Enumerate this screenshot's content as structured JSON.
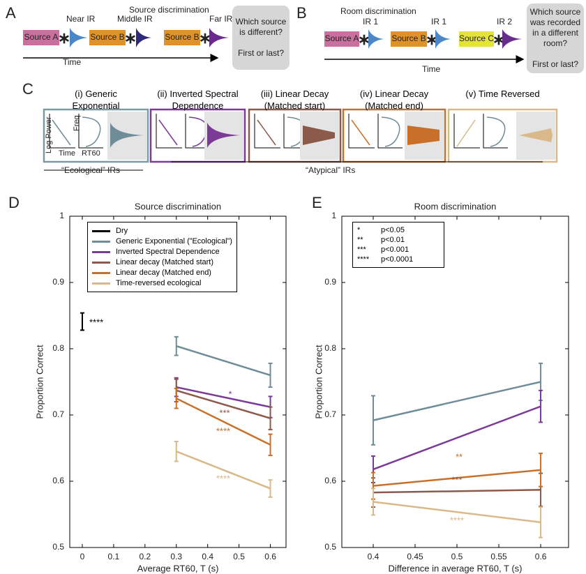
{
  "panel_a": {
    "label": "A",
    "title": "Source discrimination",
    "sources": [
      "Source A",
      "Source B",
      "Source B"
    ],
    "irs": [
      "Near IR",
      "Middle IR",
      "Far  IR"
    ],
    "time_label": "Time",
    "question": "Which source is different?",
    "question2": "First or last?"
  },
  "panel_b": {
    "label": "B",
    "title": "Room discrimination",
    "sources": [
      "Source A",
      "Source B",
      "Source C"
    ],
    "irs": [
      "IR 1",
      "IR 1",
      "IR 2"
    ],
    "time_label": "Time",
    "question": "Which source was recorded in a different room?",
    "question2": "First or last?"
  },
  "panel_c": {
    "label": "C",
    "items": [
      "(i) Generic Exponential",
      "(ii) Inverted Spectral Dependence",
      "(iii) Linear Decay (Matched start)",
      "(iv) Linear Decay (Matched end)",
      "(v) Time Reversed"
    ],
    "axis_labels": {
      "log_power": "Log Power",
      "time": "Time",
      "freq": "Freq",
      "rt60": "RT60"
    },
    "groups": [
      "“Ecological” IRs",
      "“Atypical” IRs"
    ]
  },
  "chart_data": [
    {
      "type": "line",
      "label": "D",
      "title": "Source discrimination",
      "x_label": "Average RT60, T (s)",
      "y_label": "Proportion Correct",
      "xlim": [
        -0.04,
        0.65
      ],
      "xticks": [
        0,
        0.1,
        0.2,
        0.3,
        0.4,
        0.5,
        0.6
      ],
      "ylim": [
        0.5,
        1
      ],
      "yticks": [
        0.5,
        0.6,
        0.7,
        0.8,
        0.9,
        1
      ],
      "series": [
        {
          "name": "Dry",
          "color": "#000000",
          "x": [
            0
          ],
          "values": [
            0.841
          ],
          "errors": [
            0.013
          ]
        },
        {
          "name": "Generic Exponential (”Ecological”)",
          "color": "#6e8d99",
          "x": [
            0.3,
            0.6
          ],
          "values": [
            0.804,
            0.76
          ],
          "errors": [
            0.014,
            0.018
          ]
        },
        {
          "name": "Inverted Spectral Dependence",
          "color": "#7b3a96",
          "x": [
            0.3,
            0.6
          ],
          "values": [
            0.742,
            0.712
          ],
          "errors": [
            0.014,
            0.016
          ]
        },
        {
          "name": "Linear decay (Matched start)",
          "color": "#8c5a4a",
          "x": [
            0.3,
            0.6
          ],
          "values": [
            0.737,
            0.695
          ],
          "errors": [
            0.017,
            0.017
          ]
        },
        {
          "name": "Linear decay (Matched end)",
          "color": "#c8702a",
          "x": [
            0.3,
            0.6
          ],
          "values": [
            0.725,
            0.655
          ],
          "errors": [
            0.015,
            0.016
          ]
        },
        {
          "name": "Time-reversed ecological",
          "color": "#d9b98a",
          "x": [
            0.3,
            0.6
          ],
          "values": [
            0.645,
            0.589
          ],
          "errors": [
            0.015,
            0.013
          ]
        }
      ],
      "annotations": [
        {
          "text": "****",
          "color": "#000000"
        },
        {
          "text": "*",
          "color": "#7b3a96"
        },
        {
          "text": "***",
          "color": "#8c5a4a"
        },
        {
          "text": "****",
          "color": "#c8702a"
        },
        {
          "text": "****",
          "color": "#d9b98a"
        }
      ]
    },
    {
      "type": "line",
      "label": "E",
      "title": "Room discrimination",
      "x_label": "Difference in average RT60,  T (s)",
      "y_label": "Proportion Correct",
      "xlim": [
        0.3625,
        0.6333
      ],
      "xticks": [
        0.4,
        0.45,
        0.5,
        0.55,
        0.6
      ],
      "ylim": [
        0.5,
        1
      ],
      "yticks": [
        0.5,
        0.6,
        0.7,
        0.8,
        0.9,
        1
      ],
      "series": [
        {
          "name": "Generic Exponential (”Ecological”)",
          "color": "#6e8d99",
          "x": [
            0.4,
            0.6
          ],
          "values": [
            0.692,
            0.75
          ],
          "errors": [
            0.037,
            0.028
          ]
        },
        {
          "name": "Inverted Spectral Dependence",
          "color": "#7b3a96",
          "x": [
            0.4,
            0.6
          ],
          "values": [
            0.618,
            0.713
          ],
          "errors": [
            0.02,
            0.024
          ]
        },
        {
          "name": "Linear decay (Matched start)",
          "color": "#8c5a4a",
          "x": [
            0.4,
            0.6
          ],
          "values": [
            0.583,
            0.587
          ],
          "errors": [
            0.022,
            0.025
          ]
        },
        {
          "name": "Linear decay (Matched end)",
          "color": "#c8702a",
          "x": [
            0.4,
            0.6
          ],
          "values": [
            0.593,
            0.617
          ],
          "errors": [
            0.02,
            0.025
          ]
        },
        {
          "name": "Time-reversed ecological",
          "color": "#d9b98a",
          "x": [
            0.4,
            0.6
          ],
          "values": [
            0.569,
            0.538
          ],
          "errors": [
            0.02,
            0.023
          ]
        }
      ],
      "significance_key": [
        {
          "stars": "*",
          "label": "p<0.05"
        },
        {
          "stars": "**",
          "label": "p<0.01"
        },
        {
          "stars": "***",
          "label": "p<0.001"
        },
        {
          "stars": "****",
          "label": "p<0.0001"
        }
      ],
      "annotations": [
        {
          "text": "**",
          "color": "#c8702a"
        },
        {
          "text": "***",
          "color": "#8c5a4a"
        },
        {
          "text": "****",
          "color": "#d9b98a"
        }
      ]
    }
  ]
}
